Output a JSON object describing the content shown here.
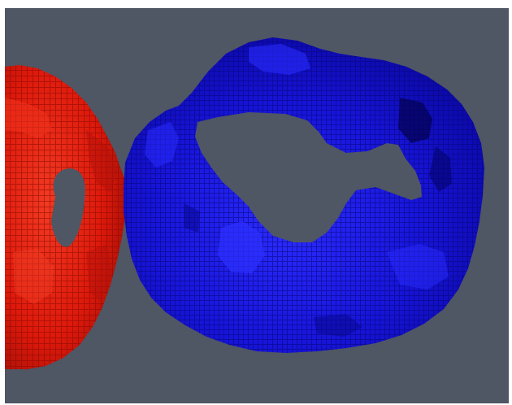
{
  "scene": {
    "background_color": "#4f5664",
    "objects": [
      {
        "name": "red-voxel-torus",
        "shape": "voxelized torus (partially visible, cut by left edge)",
        "color": "#e01a0c",
        "highlight_color": "#f2301c",
        "shadow_color": "#8f0c04"
      },
      {
        "name": "blue-voxel-ring",
        "shape": "voxelized irregular ring with large hole",
        "color": "#1512d6",
        "highlight_color": "#2a2cff",
        "shadow_color": "#05047a"
      }
    ]
  }
}
